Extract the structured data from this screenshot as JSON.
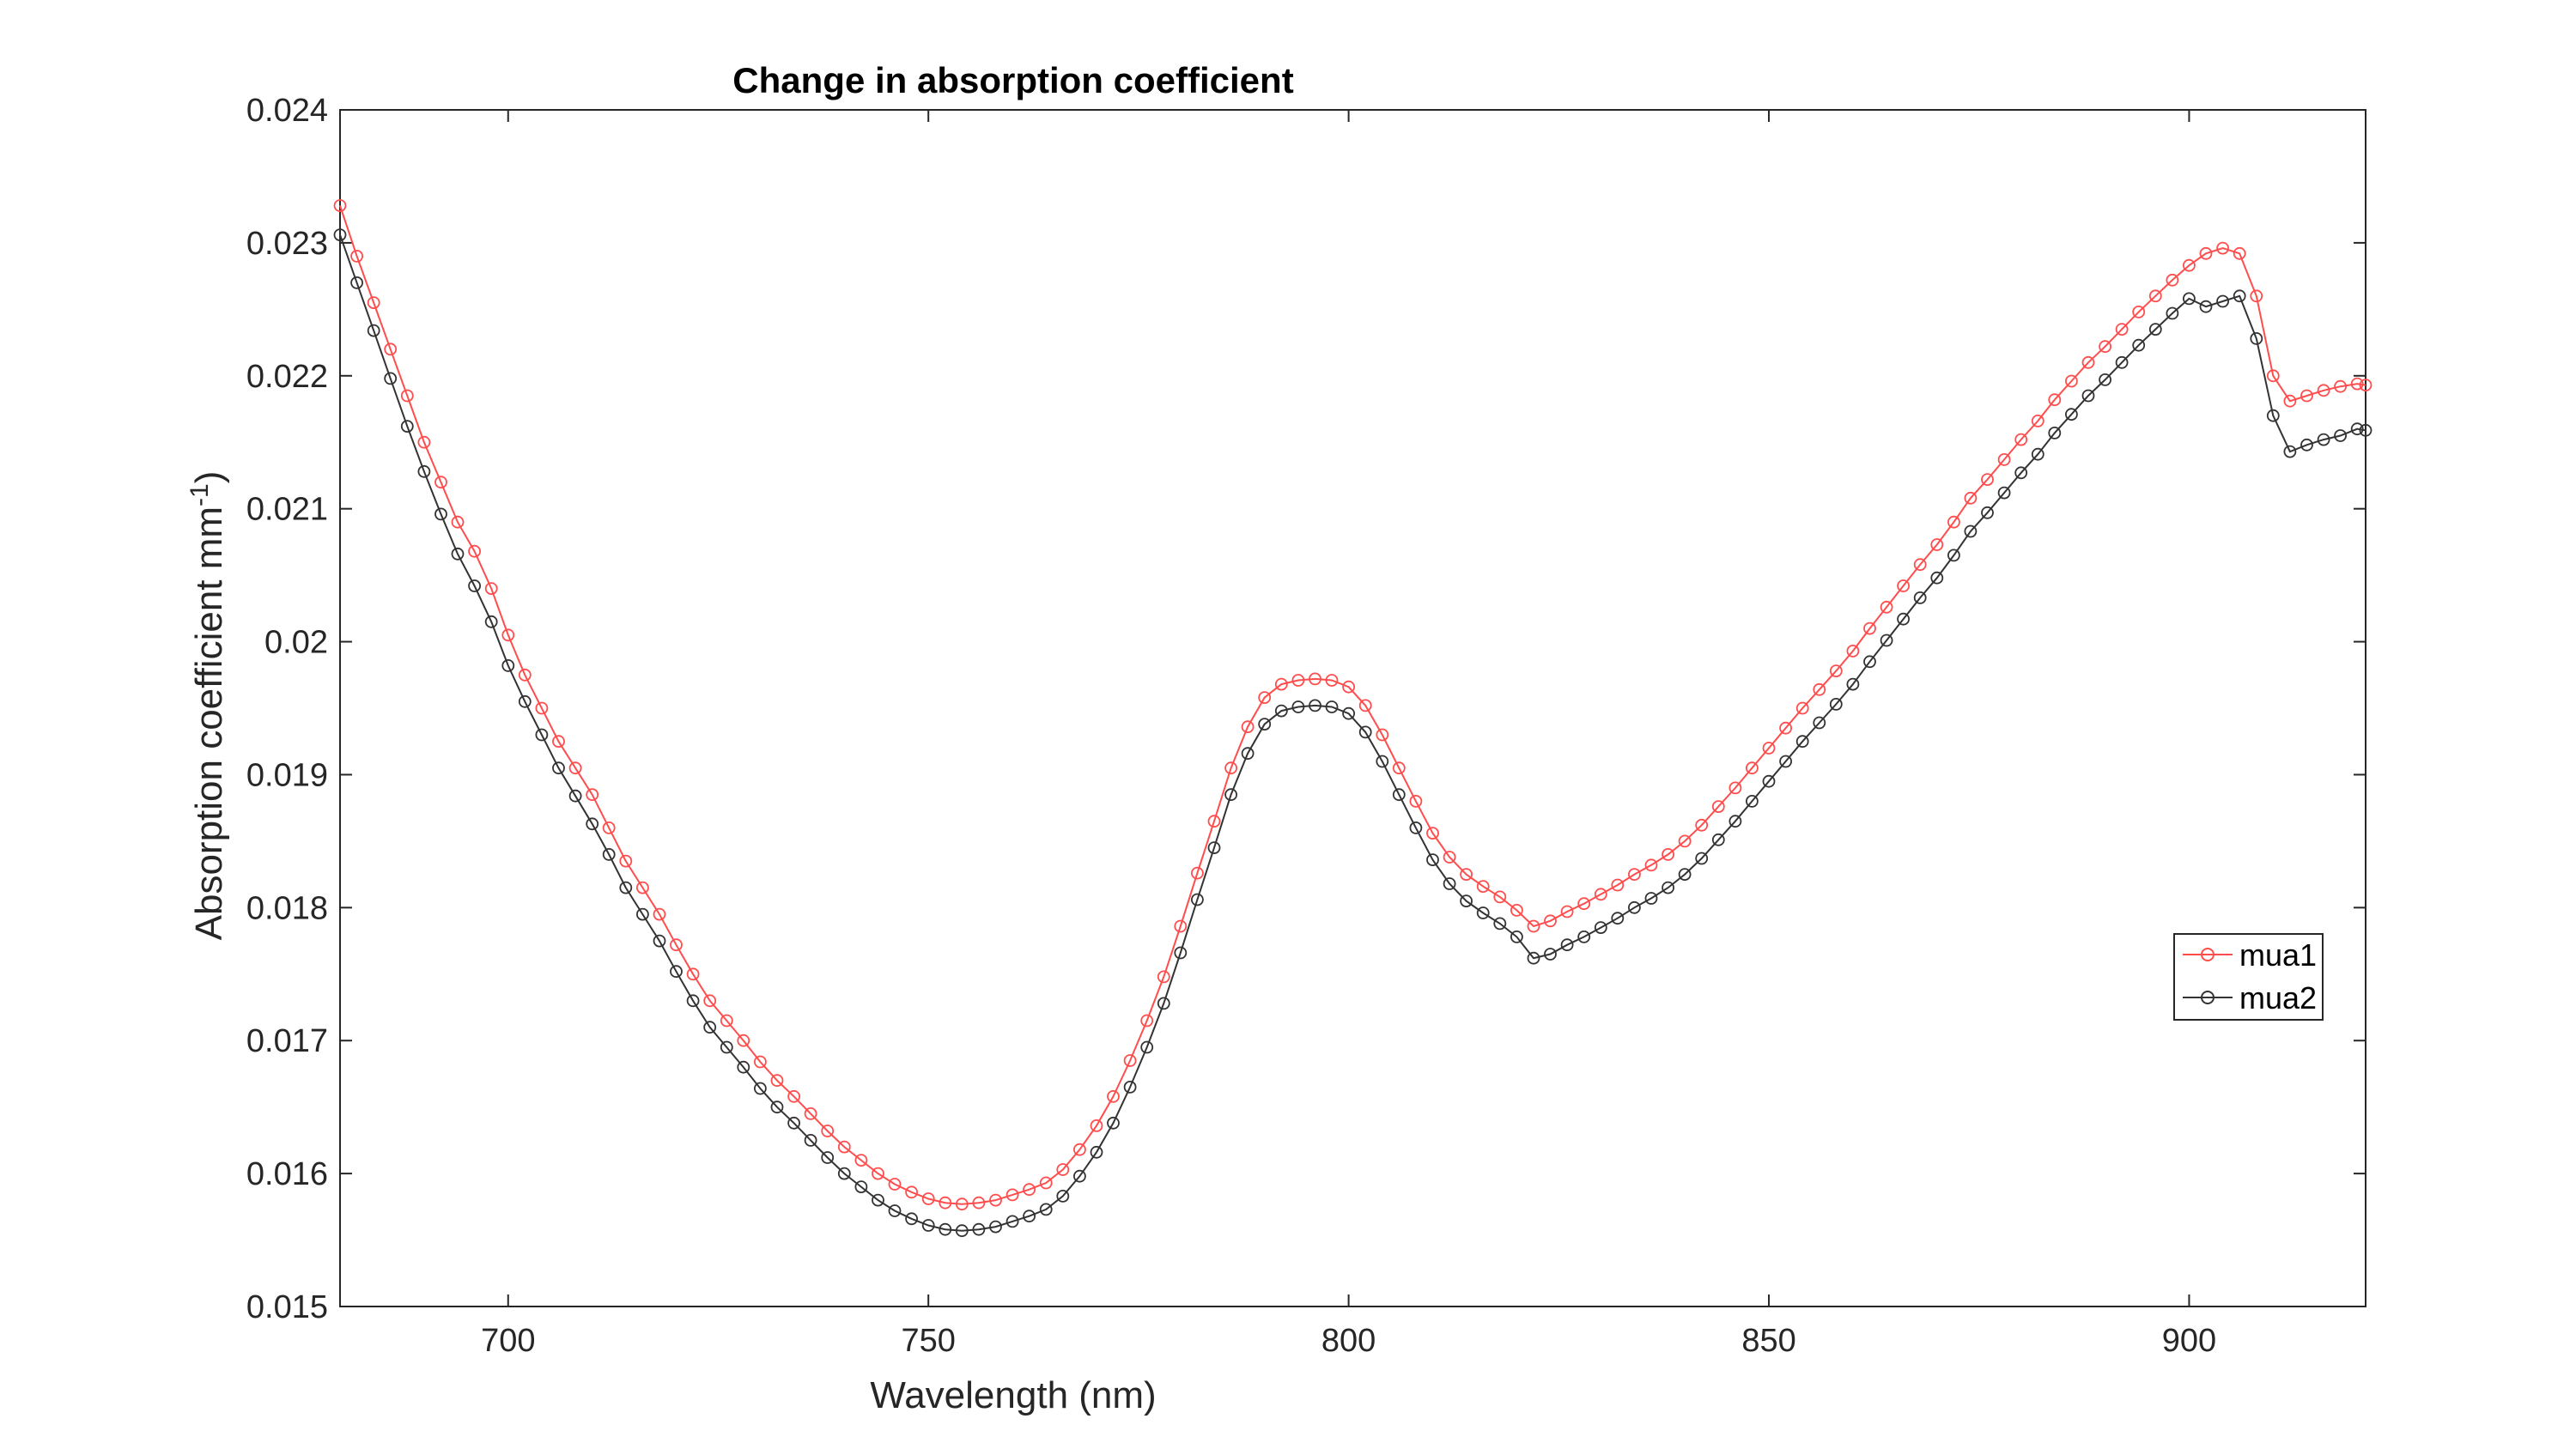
{
  "chart_data": {
    "type": "line",
    "title": "Change in absorption coefficient",
    "xlabel": "Wavelength (nm)",
    "ylabel_main": "Absorption coefficient mm",
    "ylabel_sup": "-1",
    "ylabel_close": ")",
    "xlim": [
      680,
      921
    ],
    "ylim": [
      0.015,
      0.024
    ],
    "xticks": [
      700,
      750,
      800,
      850,
      900
    ],
    "xtick_labels": [
      "700",
      "750",
      "800",
      "850",
      "900"
    ],
    "yticks": [
      0.015,
      0.016,
      0.017,
      0.018,
      0.019,
      0.02,
      0.021,
      0.022,
      0.023,
      0.024
    ],
    "ytick_labels": [
      "0.015",
      "0.016",
      "0.017",
      "0.018",
      "0.019",
      "0.02",
      "0.021",
      "0.022",
      "0.023",
      "0.024"
    ],
    "grid": false,
    "legend_position": "right",
    "marker": "circle",
    "series": [
      {
        "name": "mua1",
        "color": "#ff4d4d",
        "points": [
          [
            680,
            0.02328
          ],
          [
            682,
            0.0229
          ],
          [
            684,
            0.02255
          ],
          [
            686,
            0.0222
          ],
          [
            688,
            0.02185
          ],
          [
            690,
            0.0215
          ],
          [
            692,
            0.0212
          ],
          [
            694,
            0.0209
          ],
          [
            696,
            0.02068
          ],
          [
            698,
            0.0204
          ],
          [
            700,
            0.02005
          ],
          [
            702,
            0.01975
          ],
          [
            704,
            0.0195
          ],
          [
            706,
            0.01925
          ],
          [
            708,
            0.01905
          ],
          [
            710,
            0.01885
          ],
          [
            712,
            0.0186
          ],
          [
            714,
            0.01835
          ],
          [
            716,
            0.01815
          ],
          [
            718,
            0.01795
          ],
          [
            720,
            0.01772
          ],
          [
            722,
            0.0175
          ],
          [
            724,
            0.0173
          ],
          [
            726,
            0.01715
          ],
          [
            728,
            0.017
          ],
          [
            730,
            0.01684
          ],
          [
            732,
            0.0167
          ],
          [
            734,
            0.01658
          ],
          [
            736,
            0.01645
          ],
          [
            738,
            0.01632
          ],
          [
            740,
            0.0162
          ],
          [
            742,
            0.0161
          ],
          [
            744,
            0.016
          ],
          [
            746,
            0.01592
          ],
          [
            748,
            0.01586
          ],
          [
            750,
            0.01581
          ],
          [
            752,
            0.01578
          ],
          [
            754,
            0.01577
          ],
          [
            756,
            0.01578
          ],
          [
            758,
            0.0158
          ],
          [
            760,
            0.01584
          ],
          [
            762,
            0.01588
          ],
          [
            764,
            0.01593
          ],
          [
            766,
            0.01603
          ],
          [
            768,
            0.01618
          ],
          [
            770,
            0.01636
          ],
          [
            772,
            0.01658
          ],
          [
            774,
            0.01685
          ],
          [
            776,
            0.01715
          ],
          [
            778,
            0.01748
          ],
          [
            780,
            0.01786
          ],
          [
            782,
            0.01826
          ],
          [
            784,
            0.01865
          ],
          [
            786,
            0.01905
          ],
          [
            788,
            0.01936
          ],
          [
            790,
            0.01958
          ],
          [
            792,
            0.01968
          ],
          [
            794,
            0.01971
          ],
          [
            796,
            0.01972
          ],
          [
            798,
            0.01971
          ],
          [
            800,
            0.01966
          ],
          [
            802,
            0.01952
          ],
          [
            804,
            0.0193
          ],
          [
            806,
            0.01905
          ],
          [
            808,
            0.0188
          ],
          [
            810,
            0.01856
          ],
          [
            812,
            0.01838
          ],
          [
            814,
            0.01825
          ],
          [
            816,
            0.01816
          ],
          [
            818,
            0.01808
          ],
          [
            820,
            0.01798
          ],
          [
            822,
            0.01786
          ],
          [
            824,
            0.0179
          ],
          [
            826,
            0.01797
          ],
          [
            828,
            0.01803
          ],
          [
            830,
            0.0181
          ],
          [
            832,
            0.01817
          ],
          [
            834,
            0.01825
          ],
          [
            836,
            0.01832
          ],
          [
            838,
            0.0184
          ],
          [
            840,
            0.0185
          ],
          [
            842,
            0.01862
          ],
          [
            844,
            0.01876
          ],
          [
            846,
            0.0189
          ],
          [
            848,
            0.01905
          ],
          [
            850,
            0.0192
          ],
          [
            852,
            0.01935
          ],
          [
            854,
            0.0195
          ],
          [
            856,
            0.01964
          ],
          [
            858,
            0.01978
          ],
          [
            860,
            0.01993
          ],
          [
            862,
            0.0201
          ],
          [
            864,
            0.02026
          ],
          [
            866,
            0.02042
          ],
          [
            868,
            0.02058
          ],
          [
            870,
            0.02073
          ],
          [
            872,
            0.0209
          ],
          [
            874,
            0.02108
          ],
          [
            876,
            0.02122
          ],
          [
            878,
            0.02137
          ],
          [
            880,
            0.02152
          ],
          [
            882,
            0.02166
          ],
          [
            884,
            0.02182
          ],
          [
            886,
            0.02196
          ],
          [
            888,
            0.0221
          ],
          [
            890,
            0.02222
          ],
          [
            892,
            0.02235
          ],
          [
            894,
            0.02248
          ],
          [
            896,
            0.0226
          ],
          [
            898,
            0.02272
          ],
          [
            900,
            0.02283
          ],
          [
            902,
            0.02292
          ],
          [
            904,
            0.02296
          ],
          [
            906,
            0.02292
          ],
          [
            908,
            0.0226
          ],
          [
            910,
            0.022
          ],
          [
            912,
            0.02181
          ],
          [
            914,
            0.02185
          ],
          [
            916,
            0.02189
          ],
          [
            918,
            0.02192
          ],
          [
            920,
            0.02194
          ],
          [
            921,
            0.02193
          ]
        ]
      },
      {
        "name": "mua2",
        "color": "#333333",
        "points": [
          [
            680,
            0.02306
          ],
          [
            682,
            0.0227
          ],
          [
            684,
            0.02234
          ],
          [
            686,
            0.02198
          ],
          [
            688,
            0.02162
          ],
          [
            690,
            0.02128
          ],
          [
            692,
            0.02096
          ],
          [
            694,
            0.02066
          ],
          [
            696,
            0.02042
          ],
          [
            698,
            0.02015
          ],
          [
            700,
            0.01982
          ],
          [
            702,
            0.01955
          ],
          [
            704,
            0.0193
          ],
          [
            706,
            0.01905
          ],
          [
            708,
            0.01884
          ],
          [
            710,
            0.01863
          ],
          [
            712,
            0.0184
          ],
          [
            714,
            0.01815
          ],
          [
            716,
            0.01795
          ],
          [
            718,
            0.01775
          ],
          [
            720,
            0.01752
          ],
          [
            722,
            0.0173
          ],
          [
            724,
            0.0171
          ],
          [
            726,
            0.01695
          ],
          [
            728,
            0.0168
          ],
          [
            730,
            0.01664
          ],
          [
            732,
            0.0165
          ],
          [
            734,
            0.01638
          ],
          [
            736,
            0.01625
          ],
          [
            738,
            0.01612
          ],
          [
            740,
            0.016
          ],
          [
            742,
            0.0159
          ],
          [
            744,
            0.0158
          ],
          [
            746,
            0.01572
          ],
          [
            748,
            0.01566
          ],
          [
            750,
            0.01561
          ],
          [
            752,
            0.01558
          ],
          [
            754,
            0.01557
          ],
          [
            756,
            0.01558
          ],
          [
            758,
            0.0156
          ],
          [
            760,
            0.01564
          ],
          [
            762,
            0.01568
          ],
          [
            764,
            0.01573
          ],
          [
            766,
            0.01583
          ],
          [
            768,
            0.01598
          ],
          [
            770,
            0.01616
          ],
          [
            772,
            0.01638
          ],
          [
            774,
            0.01665
          ],
          [
            776,
            0.01695
          ],
          [
            778,
            0.01728
          ],
          [
            780,
            0.01766
          ],
          [
            782,
            0.01806
          ],
          [
            784,
            0.01845
          ],
          [
            786,
            0.01885
          ],
          [
            788,
            0.01916
          ],
          [
            790,
            0.01938
          ],
          [
            792,
            0.01948
          ],
          [
            794,
            0.01951
          ],
          [
            796,
            0.01952
          ],
          [
            798,
            0.01951
          ],
          [
            800,
            0.01946
          ],
          [
            802,
            0.01932
          ],
          [
            804,
            0.0191
          ],
          [
            806,
            0.01885
          ],
          [
            808,
            0.0186
          ],
          [
            810,
            0.01836
          ],
          [
            812,
            0.01818
          ],
          [
            814,
            0.01805
          ],
          [
            816,
            0.01796
          ],
          [
            818,
            0.01788
          ],
          [
            820,
            0.01778
          ],
          [
            822,
            0.01762
          ],
          [
            824,
            0.01765
          ],
          [
            826,
            0.01772
          ],
          [
            828,
            0.01778
          ],
          [
            830,
            0.01785
          ],
          [
            832,
            0.01792
          ],
          [
            834,
            0.018
          ],
          [
            836,
            0.01807
          ],
          [
            838,
            0.01815
          ],
          [
            840,
            0.01825
          ],
          [
            842,
            0.01837
          ],
          [
            844,
            0.01851
          ],
          [
            846,
            0.01865
          ],
          [
            848,
            0.0188
          ],
          [
            850,
            0.01895
          ],
          [
            852,
            0.0191
          ],
          [
            854,
            0.01925
          ],
          [
            856,
            0.01939
          ],
          [
            858,
            0.01953
          ],
          [
            860,
            0.01968
          ],
          [
            862,
            0.01985
          ],
          [
            864,
            0.02001
          ],
          [
            866,
            0.02017
          ],
          [
            868,
            0.02033
          ],
          [
            870,
            0.02048
          ],
          [
            872,
            0.02065
          ],
          [
            874,
            0.02083
          ],
          [
            876,
            0.02097
          ],
          [
            878,
            0.02112
          ],
          [
            880,
            0.02127
          ],
          [
            882,
            0.02141
          ],
          [
            884,
            0.02157
          ],
          [
            886,
            0.02171
          ],
          [
            888,
            0.02185
          ],
          [
            890,
            0.02197
          ],
          [
            892,
            0.0221
          ],
          [
            894,
            0.02223
          ],
          [
            896,
            0.02235
          ],
          [
            898,
            0.02247
          ],
          [
            900,
            0.02258
          ],
          [
            902,
            0.02252
          ],
          [
            904,
            0.02256
          ],
          [
            906,
            0.0226
          ],
          [
            908,
            0.02228
          ],
          [
            910,
            0.0217
          ],
          [
            912,
            0.02143
          ],
          [
            914,
            0.02148
          ],
          [
            916,
            0.02152
          ],
          [
            918,
            0.02155
          ],
          [
            920,
            0.0216
          ],
          [
            921,
            0.02159
          ]
        ]
      }
    ]
  }
}
